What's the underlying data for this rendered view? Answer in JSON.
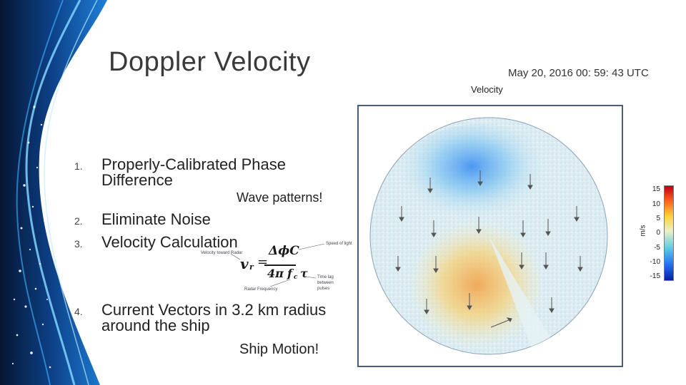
{
  "slide": {
    "title": "Doppler Velocity",
    "timestamp": "May 20, 2016 00: 59: 43 UTC"
  },
  "list": [
    {
      "num": "1.",
      "line1": "Properly-Calibrated Phase",
      "line2": "Difference"
    },
    {
      "num": "2.",
      "line1": "Eliminate Noise"
    },
    {
      "num": "3.",
      "line1": "Velocity Calculation"
    },
    {
      "num": "4.",
      "line1": "Current Vectors in 3.2 km radius",
      "line2": "around the ship"
    }
  ],
  "notes": {
    "wave": "Wave patterns!",
    "ship": "Ship Motion!"
  },
  "equation": {
    "lhs": "v",
    "lhs_sub": "r",
    "eq": "=",
    "numerator": "ΔϕC",
    "denominator_pre": "4π",
    "denominator_f": "f",
    "denominator_sub": "c",
    "denominator_post": "τ",
    "label_radial_velocity": "Velocity toward Radar",
    "label_speed_of_light": "Speed of light",
    "label_radar_frequency": "Radar Frequency",
    "label_time_lag": "Time lag",
    "label_between": "between",
    "label_pulses": "pulses"
  },
  "plot": {
    "title": "Velocity",
    "colorbar_unit": "m/s",
    "colorbar_ticks": [
      "15",
      "10",
      "5",
      "0",
      "-5",
      "-10",
      "-15"
    ],
    "colors": {
      "positive": "#c0001a",
      "neutral": "#e9f0c8",
      "negative": "#0a1fa8",
      "frame": "#4a5d7a"
    }
  }
}
